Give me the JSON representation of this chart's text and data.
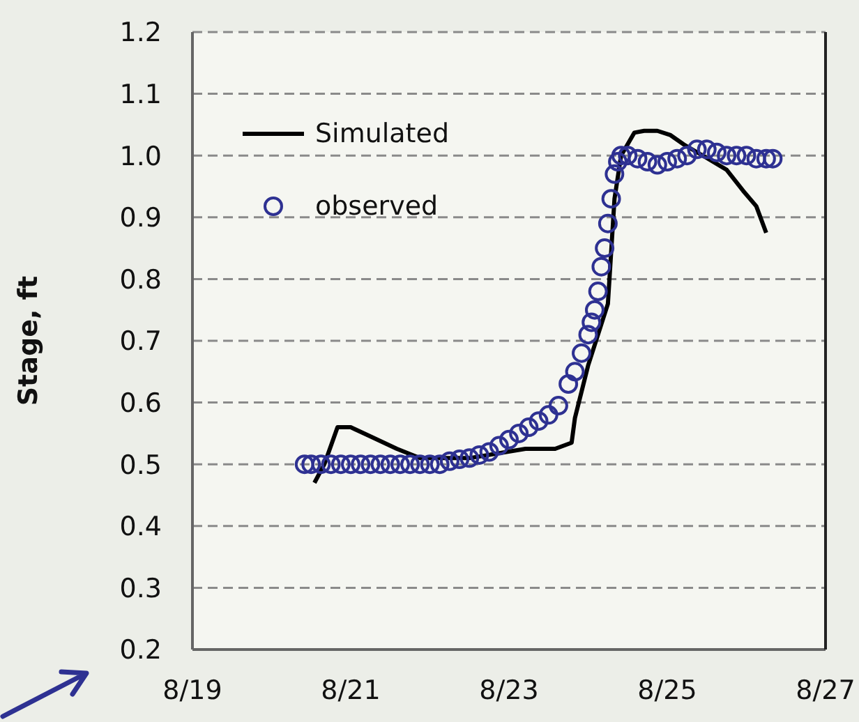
{
  "chart_data": {
    "type": "line",
    "ylabel": "Stage, ft",
    "xlim": [
      "--08-19",
      "--08-27"
    ],
    "xticks": [
      {
        "value": "--08-19",
        "label": "8/19"
      },
      {
        "value": "--08-21",
        "label": "8/21"
      },
      {
        "value": "--08-23",
        "label": "8/23"
      },
      {
        "value": "--08-25",
        "label": "8/25"
      },
      {
        "value": "--08-27",
        "label": "8/27"
      }
    ],
    "ylim": [
      0.2,
      1.2
    ],
    "yticks": [
      {
        "value": 0.2,
        "label": "0.2"
      },
      {
        "value": 0.3,
        "label": "0.3"
      },
      {
        "value": 0.4,
        "label": "0.4"
      },
      {
        "value": 0.5,
        "label": "0.5"
      },
      {
        "value": 0.6,
        "label": "0.6"
      },
      {
        "value": 0.7,
        "label": "0.7"
      },
      {
        "value": 0.8,
        "label": "0.8"
      },
      {
        "value": 0.9,
        "label": "0.9"
      },
      {
        "value": 1.0,
        "label": "1.0"
      },
      {
        "value": 1.1,
        "label": "1.1"
      },
      {
        "value": 1.2,
        "label": "1.2"
      }
    ],
    "grid": "y",
    "legend": "top left",
    "line_style": "solid",
    "series": [
      {
        "name": "Simulated",
        "marker": "none",
        "color": "#000000",
        "x": [
          "--08-20T13:00",
          "--08-20T16:00",
          "--08-20T20:00",
          "--08-21T00:00",
          "--08-21T06:00",
          "--08-21T14:00",
          "--08-21T21:00",
          "--08-22T12:00",
          "--08-23T05:00",
          "--08-23T14:00",
          "--08-23T19:00",
          "--08-23T20:00",
          "--08-24T00:00",
          "--08-24T06:00",
          "--08-24T08:00",
          "--08-24T10:00",
          "--08-24T14:00",
          "--08-24T17:00",
          "--08-24T21:00",
          "--08-25T01:00",
          "--08-25T05:00",
          "--08-25T12:00",
          "--08-25T18:00",
          "--08-25T23:00",
          "--08-26T03:00",
          "--08-26T06:00"
        ],
        "values": [
          0.47,
          0.5,
          0.56,
          0.56,
          0.545,
          0.525,
          0.51,
          0.51,
          0.525,
          0.525,
          0.535,
          0.575,
          0.66,
          0.76,
          0.93,
          1.0,
          1.037,
          1.04,
          1.04,
          1.033,
          1.018,
          0.996,
          0.977,
          0.943,
          0.918,
          0.875
        ]
      },
      {
        "name": "observed",
        "type": "scatter",
        "marker": "circle",
        "color": "#2e3192",
        "x": [
          "--08-20T10:00",
          "--08-20T12:00",
          "--08-20T15:00",
          "--08-20T18:00",
          "--08-20T21:00",
          "--08-21T00:00",
          "--08-21T03:00",
          "--08-21T06:00",
          "--08-21T09:00",
          "--08-21T12:00",
          "--08-21T15:00",
          "--08-21T18:00",
          "--08-21T21:00",
          "--08-22T00:00",
          "--08-22T03:00",
          "--08-22T06:00",
          "--08-22T09:00",
          "--08-22T12:00",
          "--08-22T15:00",
          "--08-22T18:00",
          "--08-22T21:00",
          "--08-23T00:00",
          "--08-23T03:00",
          "--08-23T06:00",
          "--08-23T09:00",
          "--08-23T12:00",
          "--08-23T15:00",
          "--08-23T18:00",
          "--08-23T20:00",
          "--08-23T22:00",
          "--08-24T00:00",
          "--08-24T01:00",
          "--08-24T02:00",
          "--08-24T03:00",
          "--08-24T04:00",
          "--08-24T05:00",
          "--08-24T06:00",
          "--08-24T07:00",
          "--08-24T08:00",
          "--08-24T09:00",
          "--08-24T10:00",
          "--08-24T12:00",
          "--08-24T15:00",
          "--08-24T18:00",
          "--08-24T21:00",
          "--08-25T00:00",
          "--08-25T03:00",
          "--08-25T06:00",
          "--08-25T09:00",
          "--08-25T12:00",
          "--08-25T15:00",
          "--08-25T18:00",
          "--08-25T21:00",
          "--08-26T00:00",
          "--08-26T03:00",
          "--08-26T06:00",
          "--08-26T08:00"
        ],
        "values": [
          0.5,
          0.5,
          0.5,
          0.5,
          0.5,
          0.5,
          0.5,
          0.5,
          0.5,
          0.5,
          0.5,
          0.5,
          0.5,
          0.5,
          0.5,
          0.505,
          0.508,
          0.51,
          0.515,
          0.52,
          0.53,
          0.54,
          0.55,
          0.56,
          0.57,
          0.58,
          0.595,
          0.63,
          0.65,
          0.68,
          0.71,
          0.73,
          0.75,
          0.78,
          0.82,
          0.85,
          0.89,
          0.93,
          0.97,
          0.99,
          1.0,
          1.0,
          0.995,
          0.99,
          0.985,
          0.99,
          0.995,
          1.0,
          1.01,
          1.01,
          1.005,
          1.0,
          1.0,
          1.0,
          0.995,
          0.995,
          0.995
        ]
      }
    ]
  }
}
